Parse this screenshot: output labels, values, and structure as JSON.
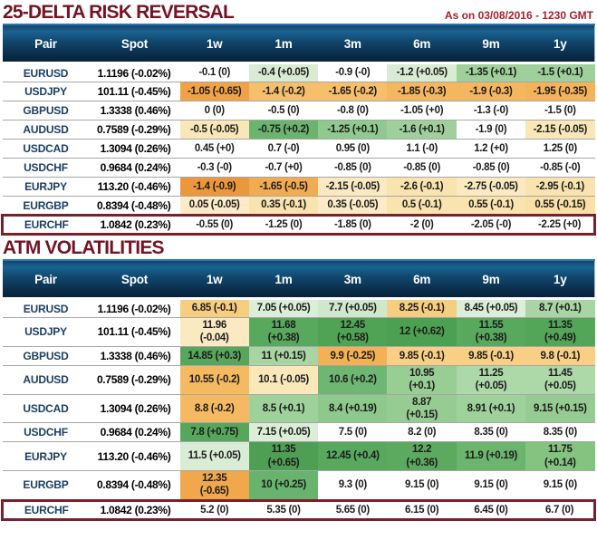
{
  "as_on": "As on 03/08/2016 - 1230 GMT",
  "colors": {
    "title_text": "#731425",
    "as_on_text": "#a81e30",
    "header_bar_top": "#1a6392",
    "header_bar_bottom": "#082136",
    "pair_text": "#1b3f63",
    "row_divider": "#a6a6a6",
    "highlight_border": "#7c1f2c",
    "positive_strong": "#4ca051",
    "positive_light": "#d9ecd3",
    "negative_strong": "#eb983c",
    "negative_light": "#fbe9c2"
  },
  "chart_data": [
    {
      "type": "table",
      "title": "25-DELTA RISK REVERSAL",
      "columns": [
        "Pair",
        "Spot",
        "1w",
        "1m",
        "3m",
        "6m",
        "9m",
        "1y"
      ],
      "rows": [
        {
          "pair": "EURUSD",
          "spot": "1.1196 (-0.02%)",
          "highlight": false,
          "cells": [
            {
              "t": "-0.1 (0)",
              "bg": "#ffffff"
            },
            {
              "t": "-0.4 (+0.05)",
              "bg": "#d9ecd3"
            },
            {
              "t": "-0.9 (-0)",
              "bg": "#ffffff"
            },
            {
              "t": "-1.2 (+0.05)",
              "bg": "#d9ecd3"
            },
            {
              "t": "-1.35 (+0.1)",
              "bg": "#9fd09b"
            },
            {
              "t": "-1.5 (+0.1)",
              "bg": "#9fd09b"
            }
          ]
        },
        {
          "pair": "USDJPY",
          "spot": "101.11 (-0.45%)",
          "highlight": false,
          "cells": [
            {
              "t": "-1.05 (-0.65)",
              "bg": "#efa246"
            },
            {
              "t": "-1.4 (-0.2)",
              "bg": "#f6bf6c"
            },
            {
              "t": "-1.65 (-0.2)",
              "bg": "#f6bf6c"
            },
            {
              "t": "-1.85 (-0.3)",
              "bg": "#f4b75f"
            },
            {
              "t": "-1.9 (-0.3)",
              "bg": "#f4b75f"
            },
            {
              "t": "-1.95 (-0.35)",
              "bg": "#f3b359"
            }
          ]
        },
        {
          "pair": "GBPUSD",
          "spot": "1.3338 (0.46%)",
          "highlight": false,
          "cells": [
            {
              "t": "0 (0)",
              "bg": "#ffffff"
            },
            {
              "t": "-0.5 (0)",
              "bg": "#ffffff"
            },
            {
              "t": "-0.8 (0)",
              "bg": "#ffffff"
            },
            {
              "t": "-1.05 (+0)",
              "bg": "#ffffff"
            },
            {
              "t": "-1.3 (-0)",
              "bg": "#ffffff"
            },
            {
              "t": "-1.5 (0)",
              "bg": "#ffffff"
            }
          ]
        },
        {
          "pair": "AUDUSD",
          "spot": "0.7589 (-0.29%)",
          "highlight": false,
          "cells": [
            {
              "t": "-0.5 (-0.05)",
              "bg": "#fae7b7"
            },
            {
              "t": "-0.75 (+0.2)",
              "bg": "#6ab46e"
            },
            {
              "t": "-1.25 (+0.1)",
              "bg": "#90c98d"
            },
            {
              "t": "-1.6 (+0.1)",
              "bg": "#9fd09b"
            },
            {
              "t": "-1.9 (0)",
              "bg": "#ffffff"
            },
            {
              "t": "-2.15 (-0.05)",
              "bg": "#fae7b7"
            }
          ]
        },
        {
          "pair": "USDCAD",
          "spot": "1.3094 (0.26%)",
          "highlight": false,
          "cells": [
            {
              "t": "0.45 (+0)",
              "bg": "#ffffff"
            },
            {
              "t": "0.7 (-0)",
              "bg": "#ffffff"
            },
            {
              "t": "0.95 (0)",
              "bg": "#ffffff"
            },
            {
              "t": "1.1 (-0)",
              "bg": "#ffffff"
            },
            {
              "t": "1.2 (+0)",
              "bg": "#ffffff"
            },
            {
              "t": "1.25 (0)",
              "bg": "#ffffff"
            }
          ]
        },
        {
          "pair": "USDCHF",
          "spot": "0.9684 (0.24%)",
          "highlight": false,
          "cells": [
            {
              "t": "-0.3 (-0)",
              "bg": "#ffffff"
            },
            {
              "t": "-0.7 (+0)",
              "bg": "#ffffff"
            },
            {
              "t": "-0.85 (0)",
              "bg": "#ffffff"
            },
            {
              "t": "-0.85 (0)",
              "bg": "#ffffff"
            },
            {
              "t": "-0.85 (0)",
              "bg": "#ffffff"
            },
            {
              "t": "-0.85 (-0)",
              "bg": "#ffffff"
            }
          ]
        },
        {
          "pair": "EURJPY",
          "spot": "113.20 (-0.46%)",
          "highlight": false,
          "cells": [
            {
              "t": "-1.4 (-0.9)",
              "bg": "#eb983c"
            },
            {
              "t": "-1.65 (-0.5)",
              "bg": "#f1ab51"
            },
            {
              "t": "-2.15 (-0.05)",
              "bg": "#fbe9c2"
            },
            {
              "t": "-2.6 (-0.1)",
              "bg": "#f9e3ae"
            },
            {
              "t": "-2.75 (-0.05)",
              "bg": "#fbe9c2"
            },
            {
              "t": "-2.95 (-0.1)",
              "bg": "#f9e3ae"
            }
          ]
        },
        {
          "pair": "EURGBP",
          "spot": "0.8394 (-0.48%)",
          "highlight": false,
          "cells": [
            {
              "t": "0.05 (-0.05)",
              "bg": "#fcebc6"
            },
            {
              "t": "0.35 (-0.1)",
              "bg": "#f9e3ae"
            },
            {
              "t": "0.35 (-0.05)",
              "bg": "#fcebc6"
            },
            {
              "t": "0.5 (-0.1)",
              "bg": "#f9e3ae"
            },
            {
              "t": "0.55 (-0.1)",
              "bg": "#f9e3ae"
            },
            {
              "t": "0.55 (-0.15)",
              "bg": "#f8e0a6"
            }
          ]
        },
        {
          "pair": "EURCHF",
          "spot": "1.0842 (0.23%)",
          "highlight": true,
          "cells": [
            {
              "t": "-0.55 (0)",
              "bg": "#ffffff"
            },
            {
              "t": "-1.25 (0)",
              "bg": "#ffffff"
            },
            {
              "t": "-1.85 (0)",
              "bg": "#ffffff"
            },
            {
              "t": "-2 (0)",
              "bg": "#ffffff"
            },
            {
              "t": "-2.05 (-0)",
              "bg": "#ffffff"
            },
            {
              "t": "-2.25 (+0)",
              "bg": "#ffffff"
            }
          ]
        }
      ]
    },
    {
      "type": "table",
      "title": "ATM VOLATILITIES",
      "columns": [
        "Pair",
        "Spot",
        "1w",
        "1m",
        "3m",
        "6m",
        "9m",
        "1y"
      ],
      "rows": [
        {
          "pair": "EURUSD",
          "spot": "1.1196 (-0.02%)",
          "highlight": false,
          "cells": [
            {
              "t": "6.85 (-0.1)",
              "bg": "#f7cd80"
            },
            {
              "t": "7.05 (+0.05)",
              "bg": "#dbeed8"
            },
            {
              "t": "7.7 (+0.05)",
              "bg": "#cfe8cb"
            },
            {
              "t": "8.25 (-0.1)",
              "bg": "#f7cd80"
            },
            {
              "t": "8.45 (+0.05)",
              "bg": "#dbeed8"
            },
            {
              "t": "8.7 (+0.1)",
              "bg": "#a8d5a3"
            }
          ]
        },
        {
          "pair": "USDJPY",
          "spot": "101.11 (-0.45%)",
          "highlight": false,
          "cells": [
            {
              "t": "11.96\n(-0.04)",
              "bg": "#fbe9c2"
            },
            {
              "t": "11.68\n(+0.38)",
              "bg": "#58a85d"
            },
            {
              "t": "12.45\n(+0.58)",
              "bg": "#50a355"
            },
            {
              "t": "12 (+0.62)",
              "bg": "#4ca051"
            },
            {
              "t": "11.55\n(+0.38)",
              "bg": "#58a85d"
            },
            {
              "t": "11.35\n(+0.49)",
              "bg": "#53a558"
            }
          ]
        },
        {
          "pair": "GBPUSD",
          "spot": "1.3338 (0.46%)",
          "highlight": false,
          "cells": [
            {
              "t": "14.85 (+0.3)",
              "bg": "#56a75b"
            },
            {
              "t": "11 (+0.15)",
              "bg": "#a8d5a3"
            },
            {
              "t": "9.9 (-0.25)",
              "bg": "#f3b055"
            },
            {
              "t": "9.85 (-0.1)",
              "bg": "#f8cf85"
            },
            {
              "t": "9.85 (-0.1)",
              "bg": "#f8cf85"
            },
            {
              "t": "9.8 (-0.1)",
              "bg": "#f8cf85"
            }
          ]
        },
        {
          "pair": "AUDUSD",
          "spot": "0.7589 (-0.29%)",
          "highlight": false,
          "cells": [
            {
              "t": "10.55 (-0.2)",
              "bg": "#f5b961"
            },
            {
              "t": "10.1 (-0.05)",
              "bg": "#fbe8ba"
            },
            {
              "t": "10.6 (+0.2)",
              "bg": "#6eb773"
            },
            {
              "t": "10.95\n(+0.1)",
              "bg": "#98cd94"
            },
            {
              "t": "11.25\n(+0.05)",
              "bg": "#add8a8"
            },
            {
              "t": "11.45\n(+0.05)",
              "bg": "#add8a8"
            }
          ]
        },
        {
          "pair": "USDCAD",
          "spot": "1.3094 (0.26%)",
          "highlight": false,
          "cells": [
            {
              "t": "8.8 (-0.2)",
              "bg": "#f5b961"
            },
            {
              "t": "8.5 (+0.1)",
              "bg": "#9ed29a"
            },
            {
              "t": "8.4 (+0.19)",
              "bg": "#8ec98b"
            },
            {
              "t": "8.87\n(+0.15)",
              "bg": "#96cc92"
            },
            {
              "t": "8.91 (+0.1)",
              "bg": "#9ed29a"
            },
            {
              "t": "9.15 (+0.15)",
              "bg": "#96cc92"
            }
          ]
        },
        {
          "pair": "USDCHF",
          "spot": "0.9684 (0.24%)",
          "highlight": false,
          "cells": [
            {
              "t": "7.8 (+0.75)",
              "bg": "#56a75b"
            },
            {
              "t": "7.15 (+0.05)",
              "bg": "#dbeed8"
            },
            {
              "t": "7.5 (0)",
              "bg": "#ffffff"
            },
            {
              "t": "8.2 (0)",
              "bg": "#ffffff"
            },
            {
              "t": "8.35 (0)",
              "bg": "#ffffff"
            },
            {
              "t": "8.35 (0)",
              "bg": "#ffffff"
            }
          ]
        },
        {
          "pair": "EURJPY",
          "spot": "113.20 (-0.46%)",
          "highlight": false,
          "cells": [
            {
              "t": "11.5 (+0.05)",
              "bg": "#d9ecd5"
            },
            {
              "t": "11.35\n(+0.65)",
              "bg": "#4e9f53"
            },
            {
              "t": "12.45 (+0.4)",
              "bg": "#58a85d"
            },
            {
              "t": "12.2\n(+0.36)",
              "bg": "#5caa60"
            },
            {
              "t": "11.9 (+0.19)",
              "bg": "#6cb56f"
            },
            {
              "t": "11.75\n(+0.14)",
              "bg": "#84c380"
            }
          ]
        },
        {
          "pair": "EURGBP",
          "spot": "0.8394 (-0.48%)",
          "highlight": false,
          "cells": [
            {
              "t": "12.35\n(-0.65)",
              "bg": "#f1a74b"
            },
            {
              "t": "10 (+0.25)",
              "bg": "#68b36d"
            },
            {
              "t": "9.3 (0)",
              "bg": "#ffffff"
            },
            {
              "t": "9.15 (0)",
              "bg": "#ffffff"
            },
            {
              "t": "9.15 (0)",
              "bg": "#ffffff"
            },
            {
              "t": "9.15 (0)",
              "bg": "#ffffff"
            }
          ]
        },
        {
          "pair": "EURCHF",
          "spot": "1.0842 (0.23%)",
          "highlight": true,
          "cells": [
            {
              "t": "5.2 (0)",
              "bg": "#ffffff"
            },
            {
              "t": "5.35 (0)",
              "bg": "#ffffff"
            },
            {
              "t": "5.65 (0)",
              "bg": "#ffffff"
            },
            {
              "t": "6.15 (0)",
              "bg": "#ffffff"
            },
            {
              "t": "6.45 (0)",
              "bg": "#ffffff"
            },
            {
              "t": "6.7 (0)",
              "bg": "#ffffff"
            }
          ]
        }
      ]
    }
  ]
}
